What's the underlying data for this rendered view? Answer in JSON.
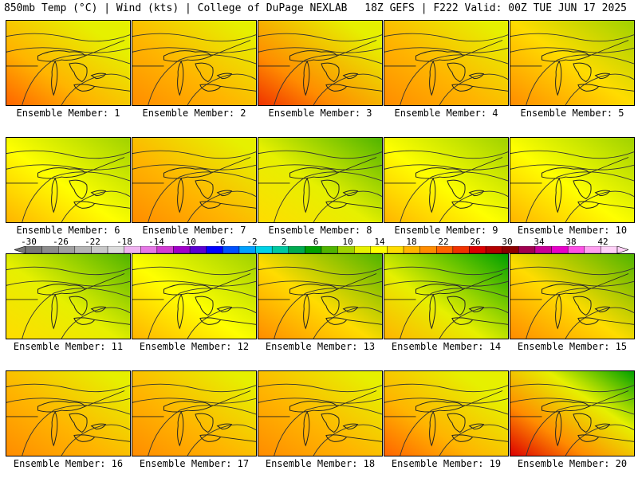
{
  "header": {
    "left": "850mb Temp (°C) | Wind (kts) | College of DuPage NEXLAB",
    "right": "18Z GEFS | F222 Valid: 00Z TUE JUN 17 2025"
  },
  "panels": [
    {
      "label": "Ensemble Member: 1",
      "theme": "hot-sw"
    },
    {
      "label": "Ensemble Member: 2",
      "theme": "warm"
    },
    {
      "label": "Ensemble Member: 3",
      "theme": "hot-w"
    },
    {
      "label": "Ensemble Member: 4",
      "theme": "warm"
    },
    {
      "label": "Ensemble Member: 5",
      "theme": "warm-green-e"
    },
    {
      "label": "Ensemble Member: 6",
      "theme": "mild"
    },
    {
      "label": "Ensemble Member: 7",
      "theme": "warm"
    },
    {
      "label": "Ensemble Member: 8",
      "theme": "cool"
    },
    {
      "label": "Ensemble Member: 9",
      "theme": "mild"
    },
    {
      "label": "Ensemble Member: 10",
      "theme": "mild"
    },
    {
      "label": "Ensemble Member: 11",
      "theme": "cool"
    },
    {
      "label": "Ensemble Member: 12",
      "theme": "mild"
    },
    {
      "label": "Ensemble Member: 13",
      "theme": "warm-green-ne"
    },
    {
      "label": "Ensemble Member: 14",
      "theme": "cool-ne"
    },
    {
      "label": "Ensemble Member: 15",
      "theme": "warm-green-ne"
    },
    {
      "label": "Ensemble Member: 16",
      "theme": "warm"
    },
    {
      "label": "Ensemble Member: 17",
      "theme": "warm"
    },
    {
      "label": "Ensemble Member: 18",
      "theme": "warm"
    },
    {
      "label": "Ensemble Member: 19",
      "theme": "hot-sw"
    },
    {
      "label": "Ensemble Member: 20",
      "theme": "hot-sw-green-ne"
    }
  ],
  "colorbar": {
    "ticks": [
      "-30",
      "-26",
      "-22",
      "-18",
      "-14",
      "-10",
      "-6",
      "-2",
      "2",
      "6",
      "10",
      "14",
      "18",
      "22",
      "26",
      "30",
      "34",
      "38",
      "42"
    ],
    "colors": [
      "#787878",
      "#8c8c8c",
      "#a0a0a0",
      "#b4b4b4",
      "#c8c8c8",
      "#dcdcdc",
      "#f0b4f0",
      "#e678e6",
      "#d23cd2",
      "#a000c8",
      "#5a00d2",
      "#0000ff",
      "#0050ff",
      "#00a0ff",
      "#00d2e6",
      "#00c8a0",
      "#00aa50",
      "#00a000",
      "#50b400",
      "#a0d200",
      "#e6f000",
      "#ffff00",
      "#ffdc00",
      "#ffb400",
      "#ff8c00",
      "#ff6400",
      "#f03200",
      "#dc0000",
      "#b40000",
      "#8c0000",
      "#a00050",
      "#c80096",
      "#e600c8",
      "#ff50e6",
      "#ffa0f0",
      "#ffd2f8"
    ]
  },
  "colors": {
    "land_warm": "#ffb400",
    "land_hot": "#ff6400",
    "land_mild": "#e6f000",
    "land_cool": "#a0d200",
    "land_cold": "#50b400",
    "contour": "#333333",
    "border": "#000000"
  },
  "icons": [
    "panel-map",
    "colorbar-left-arrow",
    "colorbar-right-arrow"
  ]
}
